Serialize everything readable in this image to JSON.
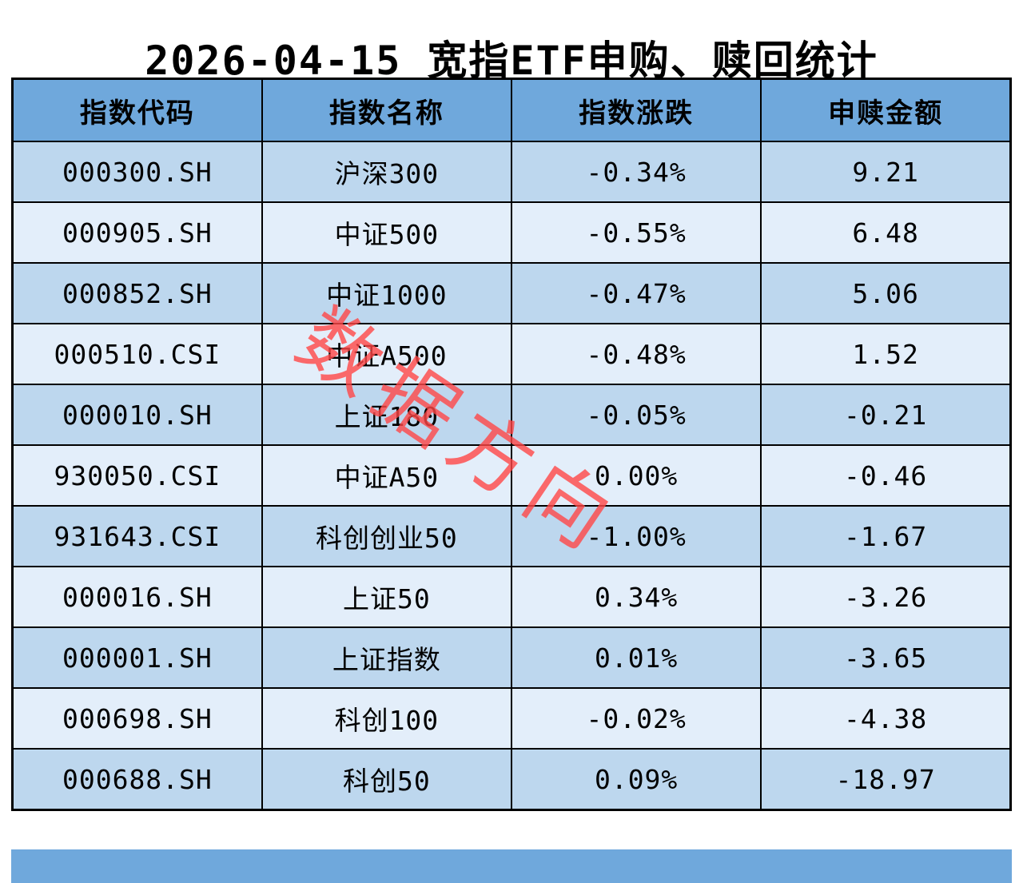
{
  "title": "2026-04-15 宽指ETF申购、赎回统计",
  "watermark": "数据方向",
  "chart_data": {
    "type": "table",
    "title": "2026-04-15 宽指ETF申购、赎回统计",
    "columns": [
      "指数代码",
      "指数名称",
      "指数涨跌",
      "申赎金额"
    ],
    "rows": [
      [
        "000300.SH",
        "沪深300",
        "-0.34%",
        "9.21"
      ],
      [
        "000905.SH",
        "中证500",
        "-0.55%",
        "6.48"
      ],
      [
        "000852.SH",
        "中证1000",
        "-0.47%",
        "5.06"
      ],
      [
        "000510.CSI",
        "中证A500",
        "-0.48%",
        "1.52"
      ],
      [
        "000010.SH",
        "上证180",
        "-0.05%",
        "-0.21"
      ],
      [
        "930050.CSI",
        "中证A50",
        "0.00%",
        "-0.46"
      ],
      [
        "931643.CSI",
        "科创创业50",
        "-1.00%",
        "-1.67"
      ],
      [
        "000016.SH",
        "上证50",
        "0.34%",
        "-3.26"
      ],
      [
        "000001.SH",
        "上证指数",
        "0.01%",
        "-3.65"
      ],
      [
        "000698.SH",
        "科创100",
        "-0.02%",
        "-4.38"
      ],
      [
        "000688.SH",
        "科创50",
        "0.09%",
        "-18.97"
      ]
    ]
  },
  "colors": {
    "header_bg": "#6fa8dc",
    "row_odd_bg": "#bdd7ee",
    "row_even_bg": "#e3eefa",
    "footer_bg": "#6fa8dc",
    "watermark_red": "#ff4646",
    "border": "#000000",
    "title_text": "#000000"
  }
}
